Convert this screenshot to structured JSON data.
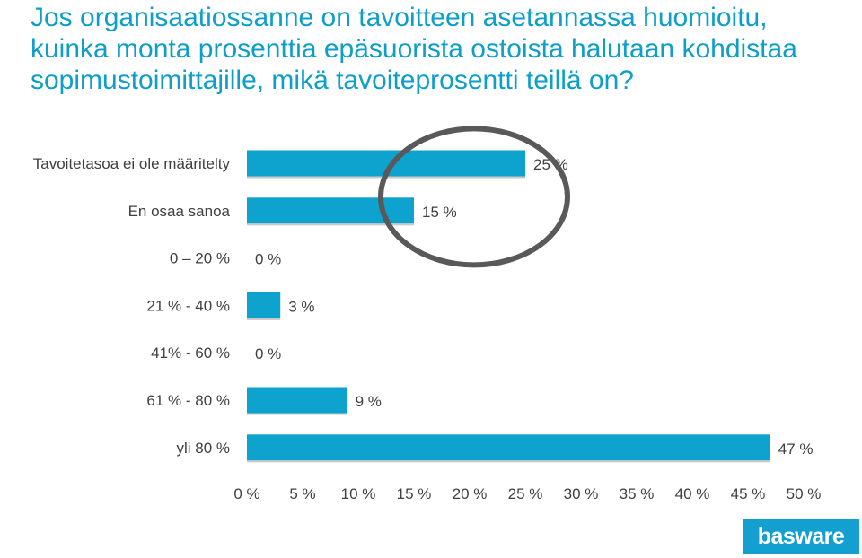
{
  "chart_data": {
    "type": "bar",
    "orientation": "horizontal",
    "title": "Jos organisaatiossanne on tavoitteen asetannassa huomioitu, kuinka monta prosenttia epäsuorista ostoista halutaan kohdistaa sopimustoimittajille, mikä tavoiteprosentti teillä on?",
    "categories": [
      "Tavoitetasoa ei ole määritelty",
      "En osaa  sanoa",
      "0 – 20 %",
      "21 % - 40 %",
      "41% - 60  %",
      "61 % - 80 %",
      "yli 80 %"
    ],
    "values": [
      25,
      15,
      0,
      3,
      0,
      9,
      47
    ],
    "value_labels": [
      "25 %",
      "15 %",
      "0 %",
      "3 %",
      "0 %",
      "9 %",
      "47 %"
    ],
    "xlim": [
      0,
      50
    ],
    "x_ticks": [
      0,
      5,
      10,
      15,
      20,
      25,
      30,
      35,
      40,
      45,
      50
    ],
    "x_tick_labels": [
      "0 %",
      "5 %",
      "10 %",
      "15 %",
      "20 %",
      "25 %",
      "30 %",
      "35 %",
      "40 %",
      "45 %",
      "50 %"
    ],
    "grid": false,
    "legend": "none",
    "bar_color": "#0ea3cf",
    "annotation": {
      "type": "ellipse-highlight",
      "color": "#595959",
      "highlights": [
        "Tavoitetasoa ei ole määritelty",
        "En osaa  sanoa"
      ]
    }
  },
  "logo": {
    "text": "basware",
    "color": "#13a0d0"
  }
}
